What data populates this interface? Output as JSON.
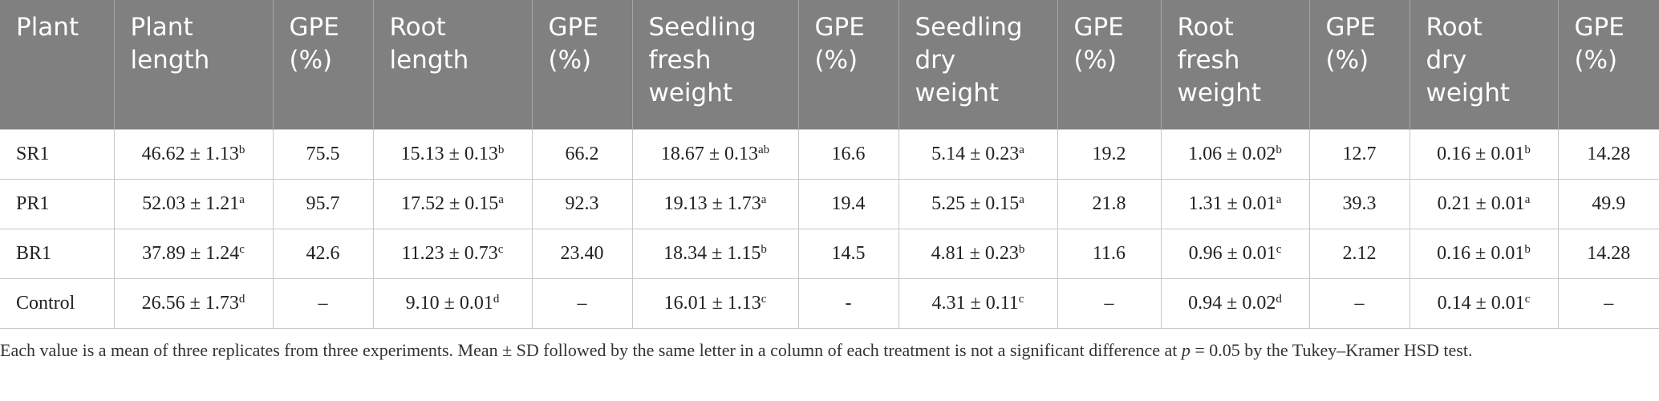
{
  "table": {
    "header": [
      "Plant",
      "Plant length",
      "GPE (%)",
      "Root length",
      "GPE (%)",
      "Seedling fresh weight",
      "GPE (%)",
      "Seedling dry weight",
      "GPE (%)",
      "Root fresh weight",
      "GPE (%)",
      "Root dry weight",
      "GPE (%)"
    ],
    "rows": [
      [
        "SR1",
        {
          "text": "46.62 ± 1.13",
          "sup": "b"
        },
        "75.5",
        {
          "text": "15.13 ± 0.13",
          "sup": "b"
        },
        "66.2",
        {
          "text": "18.67 ± 0.13",
          "sup": "ab"
        },
        "16.6",
        {
          "text": "5.14 ± 0.23",
          "sup": "a"
        },
        "19.2",
        {
          "text": "1.06 ± 0.02",
          "sup": "b"
        },
        "12.7",
        {
          "text": "0.16 ± 0.01",
          "sup": "b"
        },
        "14.28"
      ],
      [
        "PR1",
        {
          "text": "52.03 ± 1.21",
          "sup": "a"
        },
        "95.7",
        {
          "text": "17.52 ± 0.15",
          "sup": "a"
        },
        "92.3",
        {
          "text": "19.13 ± 1.73",
          "sup": "a"
        },
        "19.4",
        {
          "text": "5.25 ± 0.15",
          "sup": "a"
        },
        "21.8",
        {
          "text": "1.31 ± 0.01",
          "sup": "a"
        },
        "39.3",
        {
          "text": "0.21 ± 0.01",
          "sup": "a"
        },
        "49.9"
      ],
      [
        "BR1",
        {
          "text": "37.89 ± 1.24",
          "sup": "c"
        },
        "42.6",
        {
          "text": "11.23 ± 0.73",
          "sup": "c"
        },
        "23.40",
        {
          "text": "18.34 ± 1.15",
          "sup": "b"
        },
        "14.5",
        {
          "text": "4.81 ± 0.23",
          "sup": "b"
        },
        "11.6",
        {
          "text": "0.96 ± 0.01",
          "sup": "c"
        },
        "2.12",
        {
          "text": "0.16 ± 0.01",
          "sup": "b"
        },
        "14.28"
      ],
      [
        "Control",
        {
          "text": "26.56 ± 1.73",
          "sup": "d"
        },
        "–",
        {
          "text": "9.10 ± 0.01",
          "sup": "d"
        },
        "–",
        {
          "text": "16.01 ± 1.13",
          "sup": "c"
        },
        "-",
        {
          "text": "4.31 ± 0.11",
          "sup": "c"
        },
        "–",
        {
          "text": "0.94 ± 0.02",
          "sup": "d"
        },
        "–",
        {
          "text": "0.14 ± 0.01",
          "sup": "c"
        },
        "–"
      ]
    ]
  },
  "footnote": [
    "Each value is a mean of three replicates from three experiments. Mean ± SD followed by the same letter in a column of each treatment is not a significant difference at ",
    "p",
    " = 0.05 by the Tukey–Kramer HSD test."
  ]
}
